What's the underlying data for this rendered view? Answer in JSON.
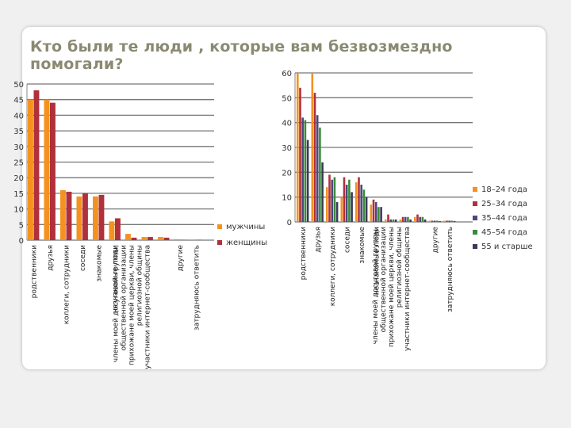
{
  "title": "Кто были те люди , которые вам безвозмездно помогали?",
  "chart_data": [
    {
      "type": "bar",
      "categories": [
        "родственники",
        "друзья",
        "коллеги, сотрудники",
        "соседи",
        "знакомые",
        "незнакомые люди",
        "члены моей досуговой группы, общественной организации",
        "прихожане моей церкви, члены религиозной общины",
        "участники интернет-сообщества",
        "другие",
        "затрудняюсь ответить"
      ],
      "series": [
        {
          "name": "мужчины",
          "color": "#f5921f",
          "values": [
            45,
            45,
            16,
            14,
            14,
            6,
            2,
            1,
            1,
            0.3,
            0.2
          ]
        },
        {
          "name": "женщины",
          "color": "#b0303b",
          "values": [
            48,
            44,
            15.5,
            15,
            14.5,
            7,
            0.8,
            1,
            0.8,
            0.1,
            0.1
          ]
        }
      ],
      "yticks": [
        "0",
        "5",
        "10",
        "15",
        "20",
        "25",
        "30",
        "35",
        "40",
        "45",
        "50"
      ],
      "ylim": [
        0,
        50
      ],
      "grid": true,
      "legend": "right"
    },
    {
      "type": "bar",
      "categories": [
        "родственники",
        "друзья",
        "коллеги, сотрудники",
        "соседи",
        "знакомые",
        "незнакомые люди",
        "члены моей досуговой группы, общественной организации",
        "прихожане моей церкви, члены религиозной общины",
        "участники интернет-сообщества",
        "другие",
        "затрудняюсь ответить"
      ],
      "series": [
        {
          "name": "18–24 года",
          "color": "#f5921f",
          "values": [
            60,
            60,
            14,
            10,
            16,
            7,
            1,
            1,
            2,
            0.5,
            0.5
          ]
        },
        {
          "name": "25–34 года",
          "color": "#b0303b",
          "values": [
            54,
            52,
            19,
            18,
            18,
            9,
            3,
            2,
            3,
            0.5,
            0.5
          ]
        },
        {
          "name": "35–44 года",
          "color": "#4a4a7a",
          "values": [
            42,
            43,
            17,
            15,
            15,
            8,
            1,
            2,
            2,
            0.5,
            0.5
          ]
        },
        {
          "name": "45–54 года",
          "color": "#3a8a3a",
          "values": [
            41,
            38,
            18,
            17,
            13,
            6,
            1,
            2,
            2,
            0.5,
            0.5
          ]
        },
        {
          "name": "55 и старше",
          "color": "#3a3a5a",
          "values": [
            33,
            24,
            8,
            12,
            10,
            6,
            1,
            1,
            1,
            0.3,
            0.3
          ]
        }
      ],
      "yticks": [
        "0",
        "10",
        "20",
        "30",
        "40",
        "50",
        "60"
      ],
      "ylim": [
        0,
        60
      ],
      "grid": true,
      "legend": "right"
    }
  ]
}
